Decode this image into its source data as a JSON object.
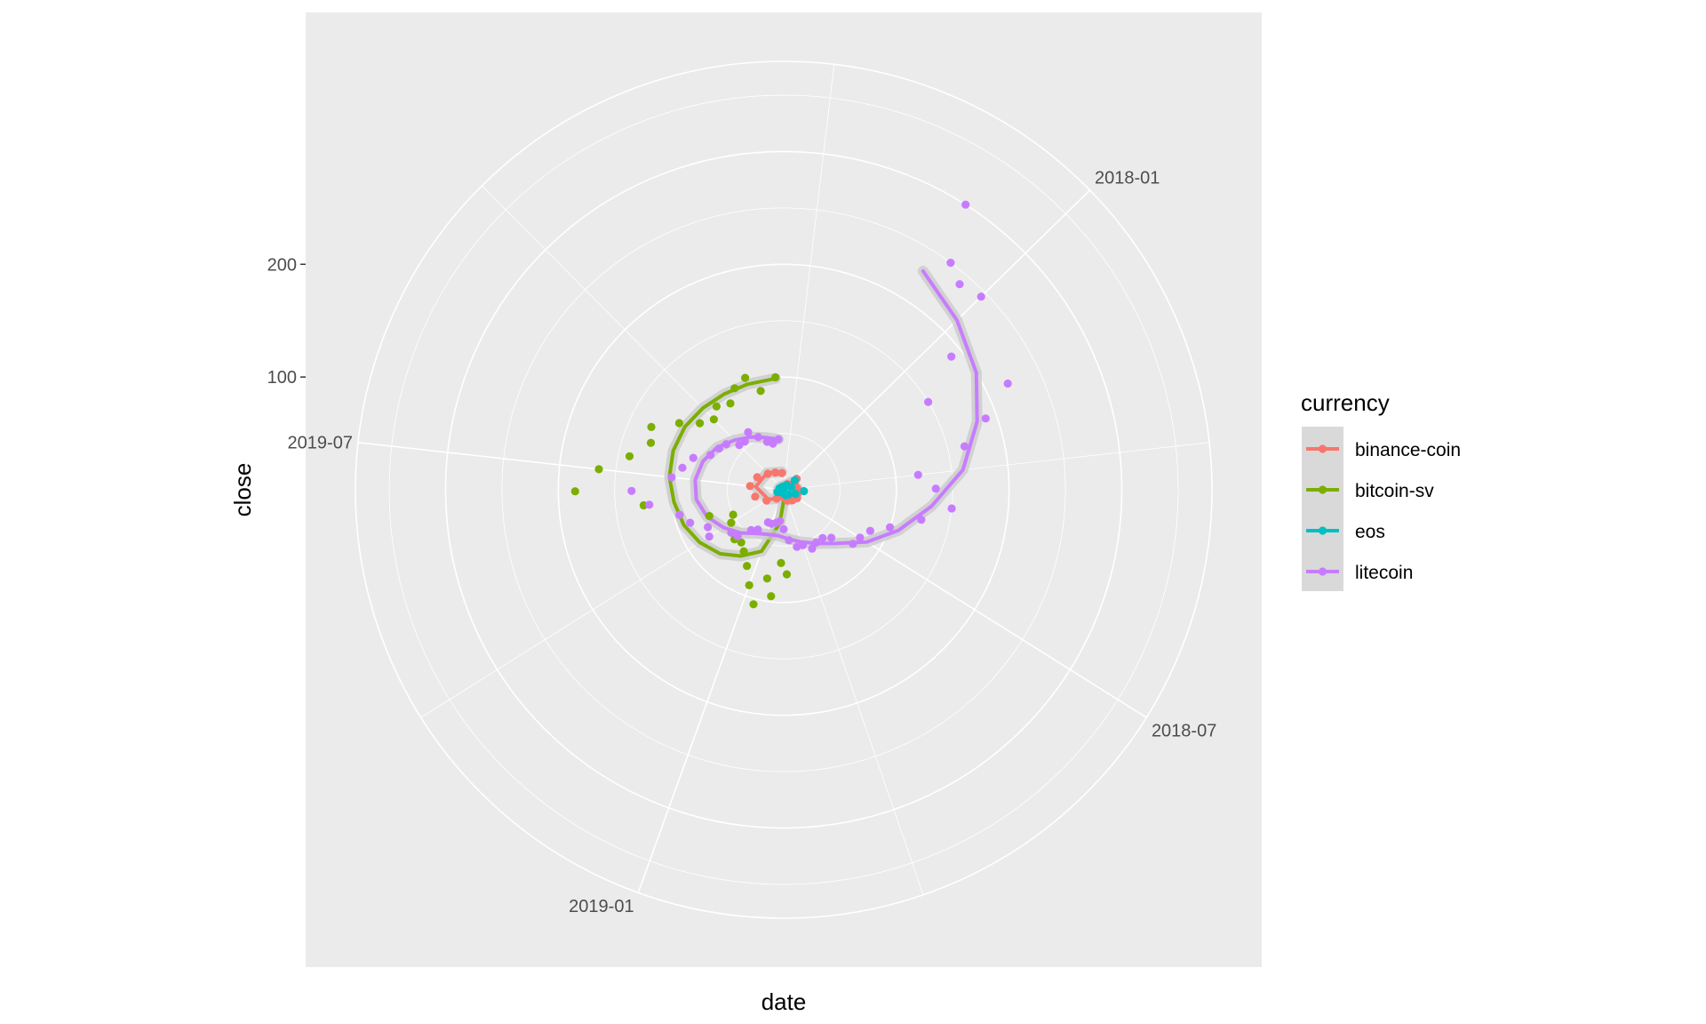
{
  "chart_data": {
    "type": "scatter",
    "coord": "polar",
    "xlabel": "date",
    "ylabel": "close",
    "x_range": [
      "2017-09-15",
      "2020-01-15"
    ],
    "x_ticks": [
      "2018-01",
      "2018-07",
      "2019-01",
      "2019-07"
    ],
    "y_range": [
      0,
      380
    ],
    "y_ticks": [
      100,
      200
    ],
    "panel_background": "#ebebeb",
    "grid_color": "#ffffff",
    "legend": {
      "title": "currency",
      "position": "right",
      "entries": [
        "binance-coin",
        "bitcoin-sv",
        "eos",
        "litecoin"
      ]
    },
    "series": [
      {
        "name": "binance-coin",
        "color": "#f8766d",
        "points": [
          [
            "2017-10-15",
            2
          ],
          [
            "2017-12-01",
            6
          ],
          [
            "2018-01-10",
            15
          ],
          [
            "2018-02-15",
            11
          ],
          [
            "2018-04-01",
            12
          ],
          [
            "2018-05-15",
            13
          ],
          [
            "2018-07-01",
            14
          ],
          [
            "2018-08-15",
            12
          ],
          [
            "2018-10-01",
            10
          ],
          [
            "2018-11-15",
            7
          ],
          [
            "2019-01-01",
            6
          ],
          [
            "2019-02-15",
            10
          ],
          [
            "2019-04-01",
            18
          ],
          [
            "2019-05-15",
            26
          ],
          [
            "2019-07-01",
            30
          ],
          [
            "2019-08-15",
            26
          ],
          [
            "2019-10-01",
            20
          ],
          [
            "2019-11-15",
            17
          ],
          [
            "2020-01-01",
            15
          ]
        ],
        "smooth": [
          [
            "2017-10-15",
            4
          ],
          [
            "2018-01-01",
            10
          ],
          [
            "2018-04-01",
            12
          ],
          [
            "2018-07-01",
            13
          ],
          [
            "2018-10-01",
            10
          ],
          [
            "2019-01-01",
            8
          ],
          [
            "2019-04-01",
            16
          ],
          [
            "2019-07-01",
            25
          ],
          [
            "2019-10-01",
            21
          ],
          [
            "2020-01-01",
            16
          ]
        ]
      },
      {
        "name": "bitcoin-sv",
        "color": "#7cae00",
        "points": [
          [
            "2018-11-10",
            75
          ],
          [
            "2018-11-20",
            65
          ],
          [
            "2018-12-01",
            95
          ],
          [
            "2018-12-10",
            80
          ],
          [
            "2018-12-20",
            105
          ],
          [
            "2019-01-01",
            90
          ],
          [
            "2019-01-15",
            75
          ],
          [
            "2019-02-01",
            65
          ],
          [
            "2019-02-15",
            60
          ],
          [
            "2019-03-01",
            62
          ],
          [
            "2019-03-15",
            60
          ],
          [
            "2019-04-01",
            55
          ],
          [
            "2019-04-15",
            50
          ],
          [
            "2019-05-01",
            70
          ],
          [
            "2019-05-15",
            95
          ],
          [
            "2019-06-01",
            125
          ],
          [
            "2019-06-15",
            185
          ],
          [
            "2019-07-01",
            165
          ],
          [
            "2019-07-15",
            140
          ],
          [
            "2019-08-01",
            125
          ],
          [
            "2019-08-15",
            130
          ],
          [
            "2019-09-01",
            110
          ],
          [
            "2019-09-15",
            95
          ],
          [
            "2019-10-01",
            88
          ],
          [
            "2019-10-15",
            95
          ],
          [
            "2019-11-01",
            90
          ],
          [
            "2019-11-15",
            100
          ],
          [
            "2019-12-01",
            105
          ],
          [
            "2019-12-15",
            90
          ],
          [
            "2020-01-05",
            100
          ]
        ],
        "smooth": [
          [
            "2018-11-10",
            8
          ],
          [
            "2018-12-01",
            30
          ],
          [
            "2019-01-01",
            58
          ],
          [
            "2019-02-01",
            70
          ],
          [
            "2019-03-01",
            80
          ],
          [
            "2019-04-01",
            88
          ],
          [
            "2019-05-01",
            94
          ],
          [
            "2019-06-01",
            98
          ],
          [
            "2019-07-01",
            102
          ],
          [
            "2019-08-01",
            104
          ],
          [
            "2019-09-01",
            104
          ],
          [
            "2019-10-01",
            102
          ],
          [
            "2019-11-01",
            100
          ],
          [
            "2019-12-01",
            99
          ],
          [
            "2020-01-05",
            99
          ]
        ]
      },
      {
        "name": "eos",
        "color": "#00bfc4",
        "points": [
          [
            "2017-10-15",
            1
          ],
          [
            "2017-12-01",
            5
          ],
          [
            "2018-01-10",
            13
          ],
          [
            "2018-03-01",
            7
          ],
          [
            "2018-04-25",
            18
          ],
          [
            "2018-06-01",
            11
          ],
          [
            "2018-08-01",
            6
          ],
          [
            "2018-10-01",
            5
          ],
          [
            "2018-12-01",
            3
          ],
          [
            "2019-02-01",
            3
          ],
          [
            "2019-05-01",
            6
          ],
          [
            "2019-08-01",
            4
          ],
          [
            "2019-11-01",
            3
          ],
          [
            "2020-01-01",
            3
          ]
        ],
        "smooth": [
          [
            "2017-10-15",
            2
          ],
          [
            "2018-01-01",
            9
          ],
          [
            "2018-04-01",
            12
          ],
          [
            "2018-07-01",
            9
          ],
          [
            "2018-10-01",
            6
          ],
          [
            "2019-01-01",
            4
          ],
          [
            "2019-04-01",
            5
          ],
          [
            "2019-07-01",
            5
          ],
          [
            "2019-10-01",
            4
          ],
          [
            "2020-01-01",
            3
          ]
        ]
      },
      {
        "name": "litecoin",
        "color": "#c77cff",
        "points": [
          [
            "2017-12-01",
            300
          ],
          [
            "2017-12-10",
            250
          ],
          [
            "2017-12-20",
            240
          ],
          [
            "2018-01-01",
            245
          ],
          [
            "2018-01-15",
            190
          ],
          [
            "2018-02-01",
            150
          ],
          [
            "2018-02-15",
            220
          ],
          [
            "2018-03-01",
            190
          ],
          [
            "2018-03-15",
            165
          ],
          [
            "2018-04-01",
            120
          ],
          [
            "2018-04-15",
            135
          ],
          [
            "2018-05-01",
            150
          ],
          [
            "2018-05-15",
            125
          ],
          [
            "2018-06-01",
            100
          ],
          [
            "2018-06-15",
            85
          ],
          [
            "2018-07-01",
            80
          ],
          [
            "2018-07-15",
            78
          ],
          [
            "2018-08-01",
            60
          ],
          [
            "2018-08-15",
            55
          ],
          [
            "2018-09-01",
            55
          ],
          [
            "2018-09-15",
            58
          ],
          [
            "2018-10-01",
            52
          ],
          [
            "2018-10-15",
            52
          ],
          [
            "2018-11-01",
            45
          ],
          [
            "2018-11-15",
            35
          ],
          [
            "2018-12-01",
            28
          ],
          [
            "2018-12-15",
            30
          ],
          [
            "2019-01-01",
            32
          ],
          [
            "2019-01-15",
            32
          ],
          [
            "2019-02-01",
            42
          ],
          [
            "2019-02-15",
            46
          ],
          [
            "2019-03-01",
            58
          ],
          [
            "2019-03-15",
            60
          ],
          [
            "2019-04-01",
            78
          ],
          [
            "2019-04-15",
            75
          ],
          [
            "2019-05-01",
            88
          ],
          [
            "2019-05-15",
            95
          ],
          [
            "2019-06-01",
            120
          ],
          [
            "2019-06-15",
            135
          ],
          [
            "2019-07-01",
            100
          ],
          [
            "2019-07-15",
            92
          ],
          [
            "2019-08-01",
            85
          ],
          [
            "2019-08-15",
            72
          ],
          [
            "2019-09-01",
            68
          ],
          [
            "2019-09-15",
            65
          ],
          [
            "2019-10-01",
            56
          ],
          [
            "2019-10-15",
            55
          ],
          [
            "2019-11-01",
            60
          ],
          [
            "2019-11-15",
            52
          ],
          [
            "2019-12-01",
            45
          ],
          [
            "2019-12-15",
            42
          ],
          [
            "2020-01-01",
            45
          ]
        ],
        "smooth": [
          [
            "2017-12-01",
            230
          ],
          [
            "2018-01-01",
            215
          ],
          [
            "2018-02-01",
            200
          ],
          [
            "2018-03-01",
            182
          ],
          [
            "2018-04-01",
            160
          ],
          [
            "2018-05-01",
            132
          ],
          [
            "2018-06-01",
            108
          ],
          [
            "2018-07-01",
            87
          ],
          [
            "2018-08-01",
            67
          ],
          [
            "2018-09-01",
            56
          ],
          [
            "2018-10-01",
            49
          ],
          [
            "2018-11-01",
            44
          ],
          [
            "2018-12-01",
            41
          ],
          [
            "2019-01-01",
            42
          ],
          [
            "2019-02-01",
            46
          ],
          [
            "2019-03-01",
            54
          ],
          [
            "2019-04-01",
            63
          ],
          [
            "2019-05-01",
            72
          ],
          [
            "2019-06-01",
            78
          ],
          [
            "2019-07-01",
            79
          ],
          [
            "2019-08-01",
            76
          ],
          [
            "2019-09-01",
            70
          ],
          [
            "2019-10-01",
            62
          ],
          [
            "2019-11-01",
            55
          ],
          [
            "2019-12-01",
            49
          ],
          [
            "2020-01-01",
            45
          ]
        ]
      }
    ]
  }
}
